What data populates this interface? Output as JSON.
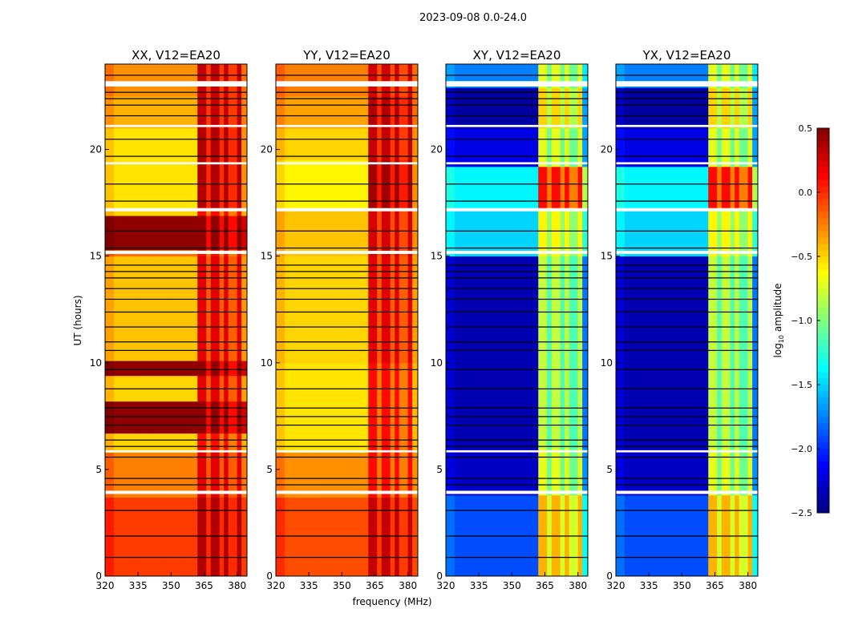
{
  "chart_data": {
    "type": "heatmap",
    "title": "2023-09-08 0.0-24.0",
    "xlabel": "frequency (MHz)",
    "ylabel": "UT (hours)",
    "xlim": [
      320,
      384.5
    ],
    "ylim": [
      0,
      24
    ],
    "xticks": [
      "320",
      "335",
      "350",
      "365",
      "380"
    ],
    "xtick_values": [
      320,
      335,
      350,
      365,
      380
    ],
    "yticks": [
      "0",
      "5",
      "10",
      "15",
      "20"
    ],
    "ytick_values": [
      0,
      5,
      10,
      15,
      20
    ],
    "colormap": "jet",
    "colorbar": {
      "label": "log10 amplitude",
      "label_main": "log",
      "label_sub": "10",
      "label_rest": " amplitude",
      "range": [
        -2.5,
        0.5
      ],
      "ticks": [
        "0.5",
        "0.0",
        "−0.5",
        "−1.0",
        "−1.5",
        "−2.0",
        "−2.5"
      ],
      "tick_values": [
        0.5,
        0,
        -0.5,
        -1,
        -1.5,
        -2,
        -2.5
      ]
    },
    "rfi_band_mhz": [
      362,
      382
    ],
    "rfi_stripe_dips_mhz": [
      366.5,
      373,
      378
    ],
    "flagged_hours": [
      [
        3.85,
        4.0
      ],
      [
        5.8,
        5.9
      ],
      [
        15.1,
        15.25
      ],
      [
        17.1,
        17.25
      ],
      [
        19.3,
        19.4
      ],
      [
        21.05,
        21.15
      ],
      [
        22.95,
        23.2
      ]
    ],
    "black_line_hours": [
      0.9,
      1.9,
      3.1,
      4.3,
      4.6,
      5.6,
      6.1,
      6.4,
      7.1,
      7.5,
      7.9,
      8.8,
      9.7,
      10.6,
      11.0,
      11.7,
      12.4,
      13.0,
      13.5,
      14.0,
      14.3,
      14.6,
      15.4,
      16.2,
      17.6,
      18.4,
      19.7,
      20.5,
      21.6,
      22.1,
      22.4,
      22.7,
      23.5
    ],
    "panels": [
      {
        "title": "XX, V12=EA20",
        "segments": [
          [
            0,
            3.7,
            -0.05,
            0.35
          ],
          [
            3.7,
            5.8,
            -0.25,
            0.2
          ],
          [
            5.8,
            6.7,
            -0.5,
            0.1
          ],
          [
            6.7,
            8.2,
            0.45,
            0.45
          ],
          [
            8.2,
            9.4,
            -0.5,
            0.2
          ],
          [
            9.4,
            10.1,
            0.45,
            0.45
          ],
          [
            10.1,
            15,
            -0.45,
            0.2
          ],
          [
            15,
            15.3,
            -0.2,
            0.1
          ],
          [
            15.3,
            16.9,
            0.45,
            0.45
          ],
          [
            16.9,
            17.2,
            -0.5,
            0.1
          ],
          [
            17.2,
            21,
            -0.55,
            0.35
          ],
          [
            21,
            22.5,
            -0.4,
            0.3
          ],
          [
            22.5,
            24,
            -0.3,
            0.3
          ]
        ]
      },
      {
        "title": "YY, V12=EA20",
        "segments": [
          [
            0,
            3.7,
            -0.1,
            0.3
          ],
          [
            3.7,
            5.8,
            -0.3,
            0.1
          ],
          [
            5.8,
            10,
            -0.55,
            0.1
          ],
          [
            10,
            15,
            -0.5,
            0.2
          ],
          [
            15,
            17.2,
            -0.45,
            0.25
          ],
          [
            17.2,
            19.5,
            -0.6,
            0.4
          ],
          [
            19.5,
            21,
            -0.5,
            0.3
          ],
          [
            21,
            22.5,
            -0.35,
            0.35
          ],
          [
            22.5,
            24,
            -0.25,
            0.25
          ]
        ]
      },
      {
        "title": "XY, V12=EA20",
        "segments": [
          [
            0,
            3.8,
            -1.9,
            -0.4
          ],
          [
            3.8,
            6,
            -2.3,
            -0.7
          ],
          [
            6,
            15,
            -2.35,
            -0.8
          ],
          [
            15,
            17.2,
            -1.5,
            -0.6
          ],
          [
            17.2,
            19.2,
            -1.4,
            0.1
          ],
          [
            19.2,
            21,
            -2.2,
            -0.7
          ],
          [
            21,
            22.9,
            -2.4,
            -0.5
          ],
          [
            22.9,
            24,
            -1.75,
            -0.7
          ]
        ]
      },
      {
        "title": "YX, V12=EA20",
        "segments": [
          [
            0,
            3.8,
            -1.9,
            -0.4
          ],
          [
            3.8,
            6,
            -2.3,
            -0.7
          ],
          [
            6,
            15,
            -2.35,
            -0.8
          ],
          [
            15,
            17.2,
            -1.5,
            -0.6
          ],
          [
            17.2,
            19.2,
            -1.4,
            0.1
          ],
          [
            19.2,
            21,
            -2.2,
            -0.7
          ],
          [
            21,
            22.9,
            -2.4,
            -0.5
          ],
          [
            22.9,
            24,
            -1.75,
            -0.7
          ]
        ]
      }
    ]
  }
}
